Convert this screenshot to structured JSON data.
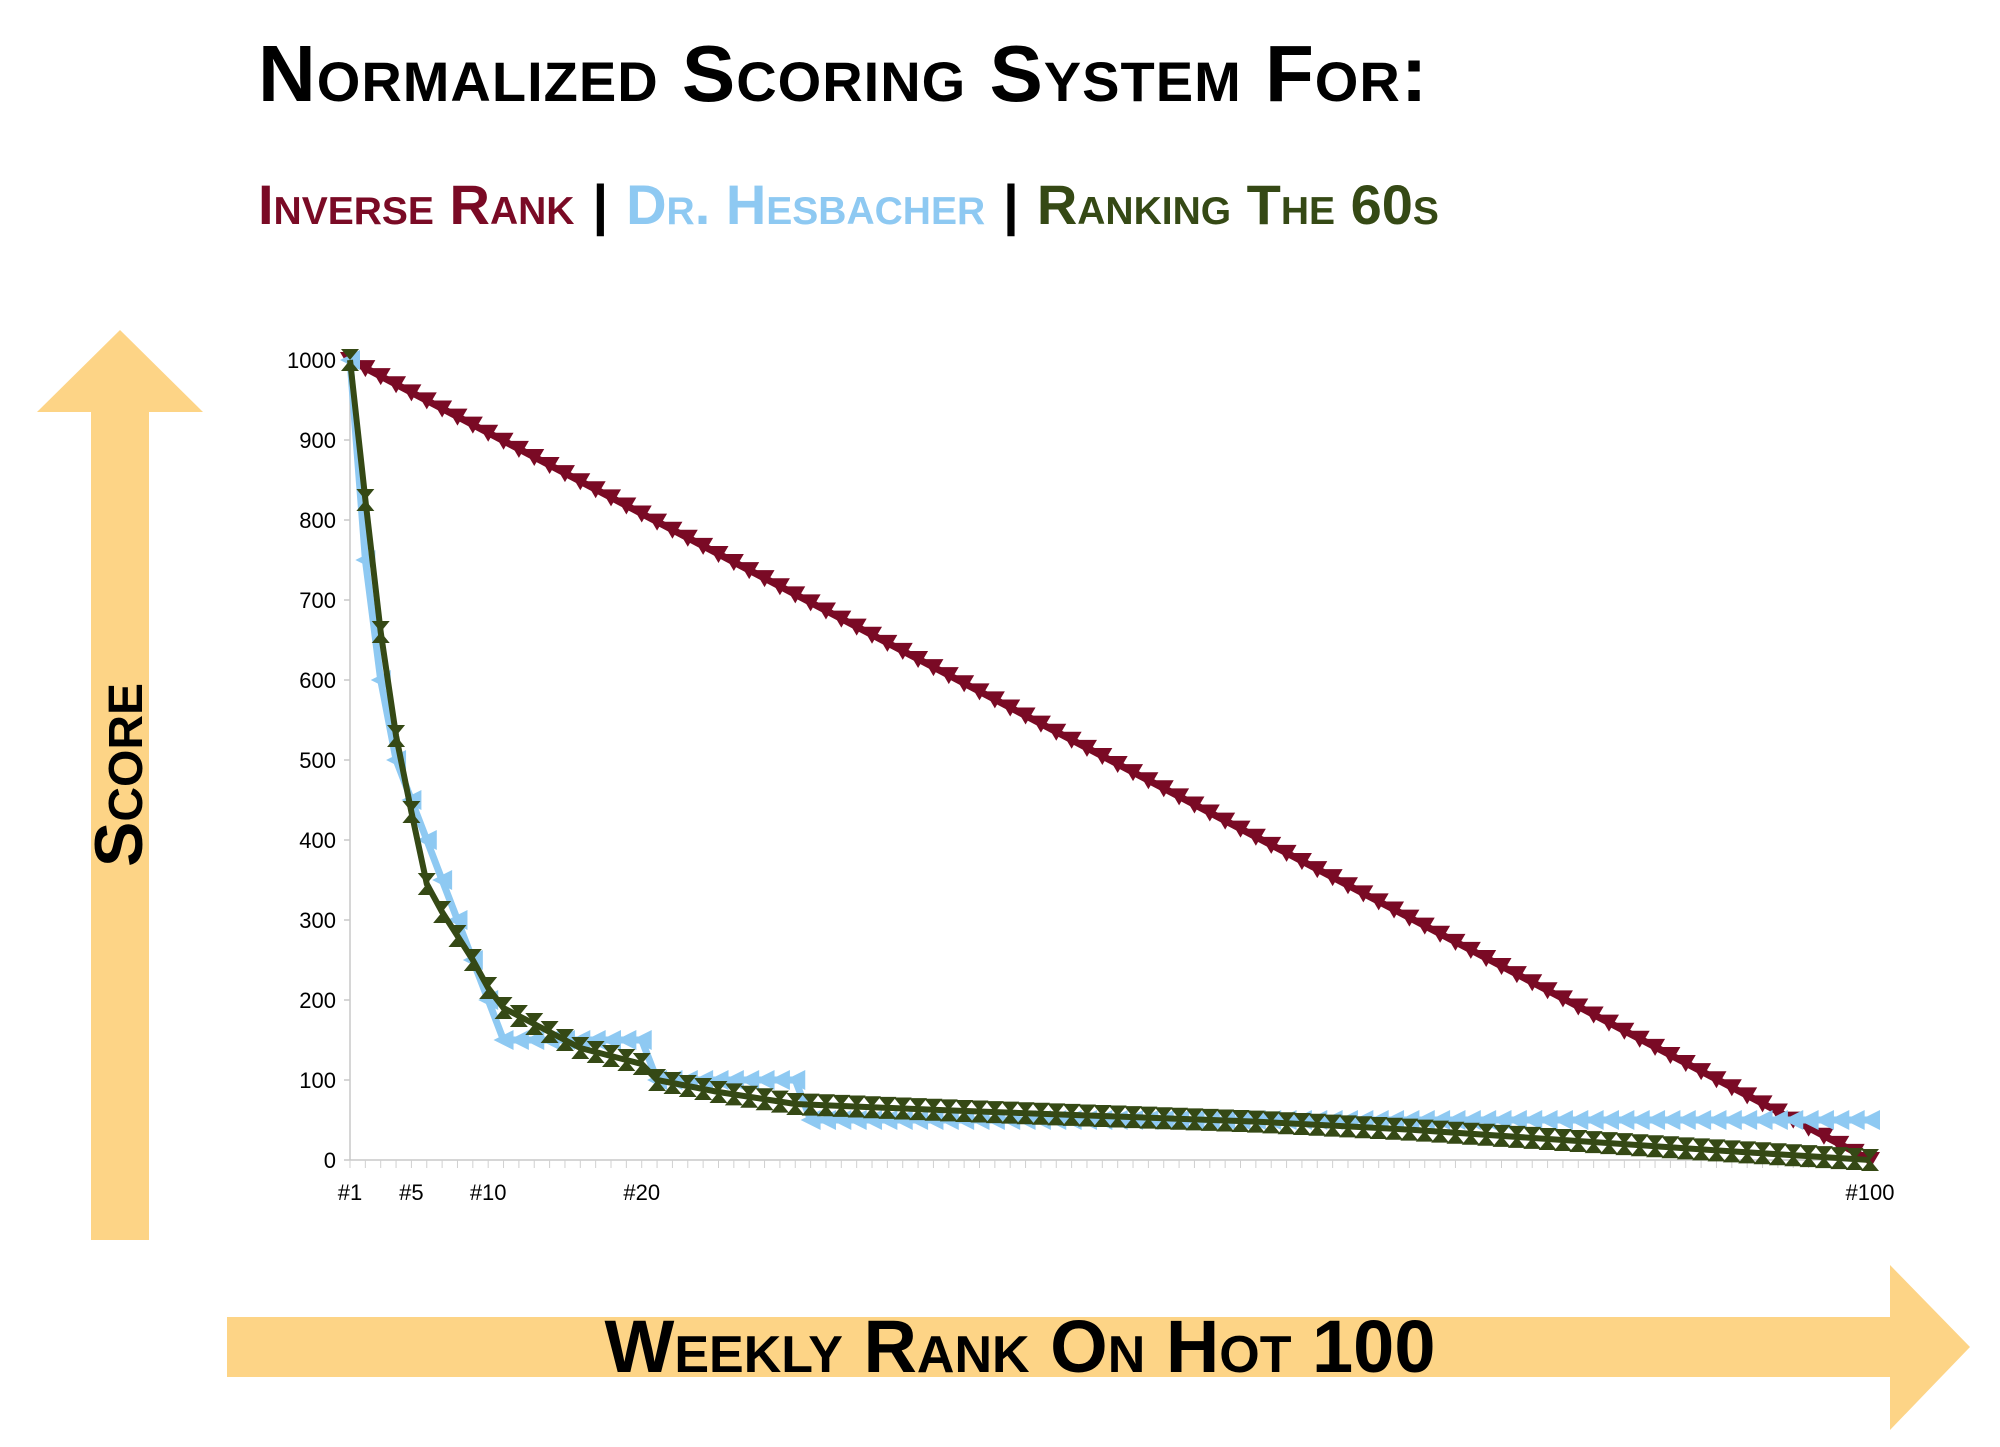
{
  "title": "Normalized Scoring System For:",
  "subtitle": {
    "inverse": "Inverse Rank",
    "hesbacher": "Dr. Hesbacher",
    "sixties": "Ranking The 60s",
    "separator": "|"
  },
  "colors": {
    "inverse": "#7a0a25",
    "hesbacher": "#8ec9f2",
    "sixties": "#354915",
    "arrow": "#fdd486"
  },
  "chart_data": {
    "type": "line",
    "title": "Normalized Scoring System For:",
    "xlabel": "Weekly Rank On Hot 100",
    "ylabel": "Score",
    "xlim": [
      1,
      100
    ],
    "ylim": [
      0,
      1000
    ],
    "y_ticks": [
      "0",
      "100",
      "200",
      "300",
      "400",
      "500",
      "600",
      "700",
      "800",
      "900",
      "1000"
    ],
    "x_ticks": [
      {
        "rank": 1,
        "label": "#1"
      },
      {
        "rank": 5,
        "label": "#5"
      },
      {
        "rank": 10,
        "label": "#10"
      },
      {
        "rank": 20,
        "label": "#20"
      },
      {
        "rank": 100,
        "label": "#100"
      }
    ],
    "grid": false,
    "legend": "subtitle",
    "series": [
      {
        "name": "Inverse Rank",
        "key": "inverse",
        "marker": "triangle-down",
        "x": [
          1,
          100
        ],
        "y": [
          1000,
          0
        ],
        "points_every_rank": true
      },
      {
        "name": "Dr. Hesbacher",
        "key": "hesbacher",
        "marker": "triangle-left",
        "x": [
          1,
          2,
          3,
          4,
          5,
          6,
          7,
          8,
          9,
          10,
          11,
          12,
          20,
          21,
          30,
          31,
          100
        ],
        "y": [
          1000,
          750,
          600,
          500,
          450,
          400,
          350,
          300,
          250,
          200,
          150,
          150,
          150,
          100,
          100,
          50,
          50
        ],
        "points_every_rank": true
      },
      {
        "name": "Ranking The 60s",
        "key": "sixties",
        "marker": "hourglass",
        "x": [
          1,
          2,
          3,
          4,
          5,
          6,
          7,
          8,
          9,
          10,
          11,
          12,
          13,
          14,
          15,
          16,
          17,
          18,
          19,
          20,
          21,
          25,
          30,
          40,
          50,
          60,
          70,
          80,
          90,
          100
        ],
        "y": [
          1000,
          825,
          660,
          530,
          435,
          345,
          310,
          280,
          250,
          215,
          190,
          180,
          170,
          160,
          150,
          140,
          135,
          130,
          125,
          120,
          100,
          85,
          70,
          62,
          55,
          48,
          38,
          25,
          12,
          0
        ],
        "points_every_rank": true
      }
    ]
  }
}
